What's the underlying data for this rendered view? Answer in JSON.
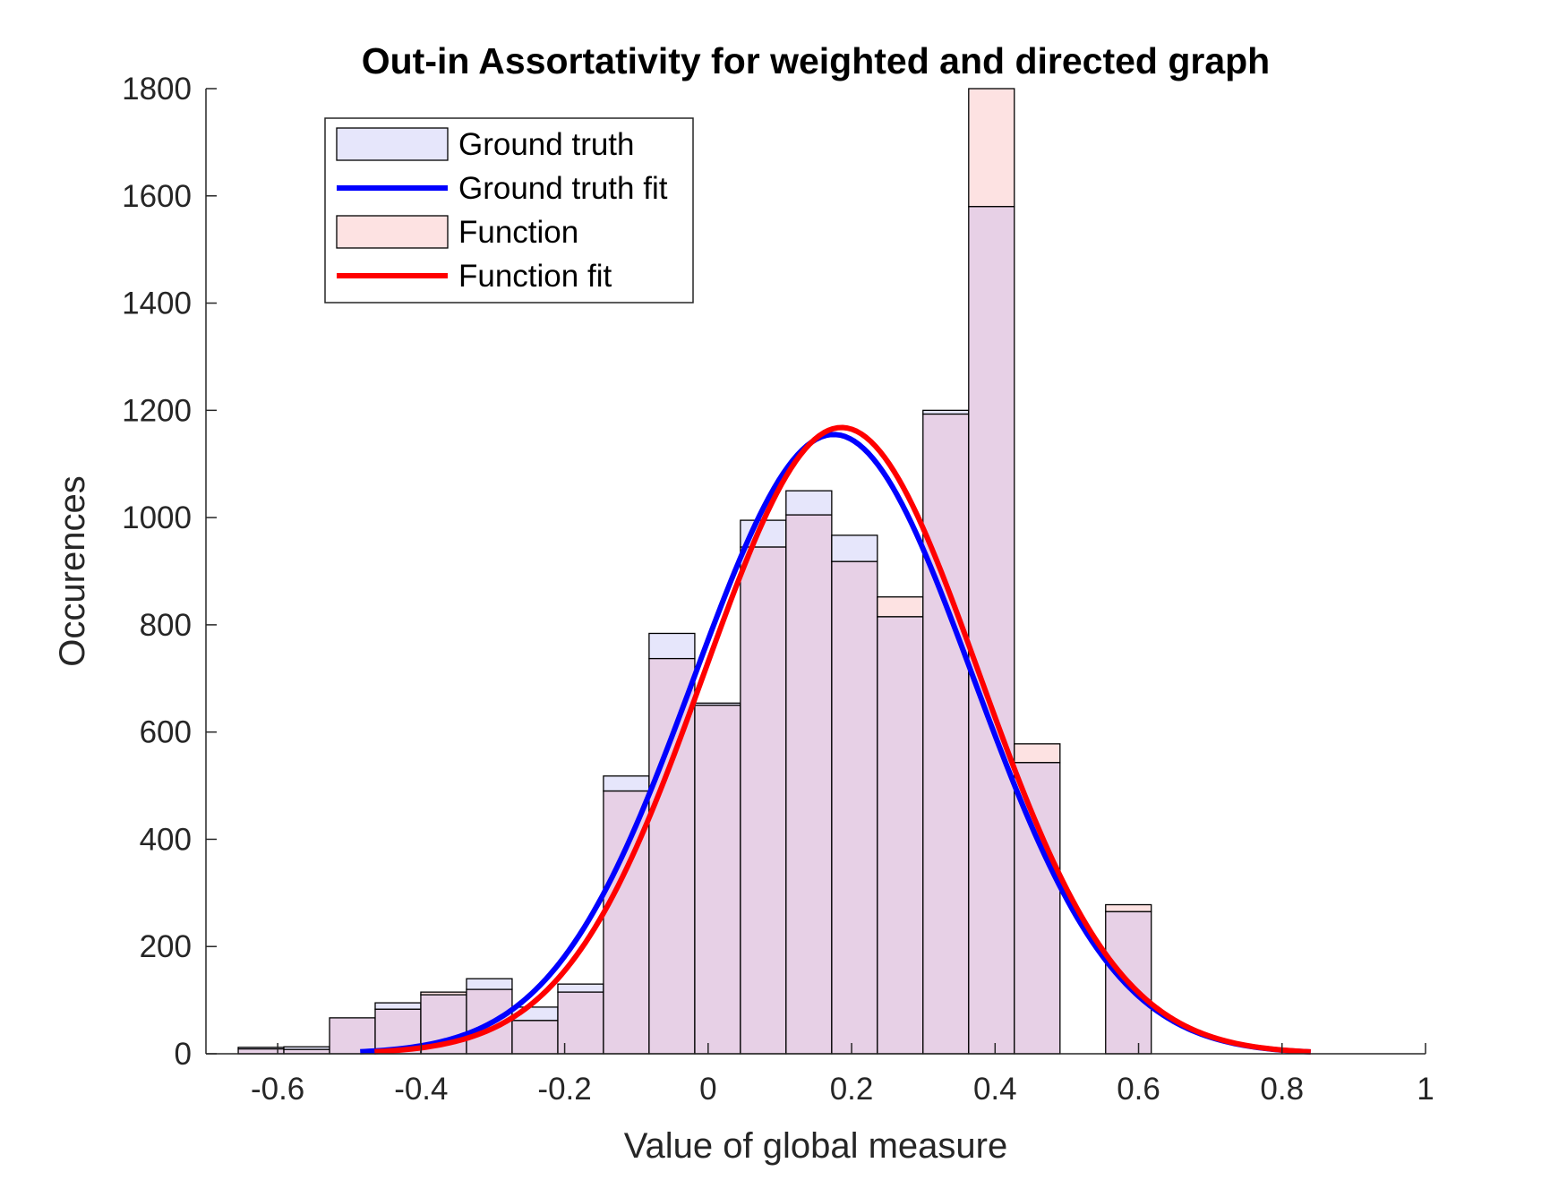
{
  "chart_data": {
    "type": "bar",
    "title": "Out-in Assortativity for weighted and directed graph",
    "xlabel": "Value of global measure",
    "ylabel": "Occurences",
    "xlim": [
      -0.7,
      1
    ],
    "ylim": [
      0,
      1800
    ],
    "xticks": [
      -0.6,
      -0.4,
      -0.2,
      0,
      0.2,
      0.4,
      0.6,
      0.8,
      1
    ],
    "xtick_labels": [
      "-0.6",
      "-0.4",
      "-0.2",
      "0",
      "0.2",
      "0.4",
      "0.6",
      "0.8",
      "1"
    ],
    "yticks": [
      0,
      200,
      400,
      600,
      800,
      1000,
      1200,
      1400,
      1600,
      1800
    ],
    "ytick_labels": [
      "0",
      "200",
      "400",
      "600",
      "800",
      "1000",
      "1200",
      "1400",
      "1600",
      "1800"
    ],
    "grid": false,
    "legend_position": "top-left",
    "bin_edges": [
      -0.655,
      -0.5914,
      -0.5277,
      -0.4641,
      -0.4005,
      -0.3368,
      -0.2732,
      -0.2095,
      -0.1459,
      -0.0823,
      -0.0186,
      0.045,
      0.1086,
      0.1723,
      0.2359,
      0.2995,
      0.3632,
      0.4268,
      0.4905,
      0.5541,
      0.6177
    ],
    "series": [
      {
        "name": "Ground truth",
        "kind": "histogram",
        "fill": "#e6e6fb",
        "values": [
          12,
          13,
          67,
          95,
          110,
          140,
          87,
          130,
          518,
          784,
          654,
          995,
          1050,
          967,
          815,
          1200,
          1580,
          543,
          0,
          265
        ]
      },
      {
        "name": "Function",
        "kind": "histogram",
        "fill": "#fde2e2",
        "values": [
          9,
          8,
          67,
          83,
          115,
          120,
          62,
          115,
          490,
          737,
          650,
          945,
          1005,
          918,
          852,
          1193,
          1800,
          578,
          0,
          278
        ]
      },
      {
        "name": "Ground truth fit",
        "kind": "gaussian_fit",
        "color": "#0000ff",
        "peak": 1155,
        "mean": 0.175,
        "sigma": 0.195,
        "x_range": [
          -0.485,
          0.84
        ]
      },
      {
        "name": "Function fit",
        "kind": "gaussian_fit",
        "color": "#ff0000",
        "peak": 1168,
        "mean": 0.186,
        "sigma": 0.192,
        "x_range": [
          -0.465,
          0.84
        ]
      }
    ],
    "overlap_fill": "#e7d0e6"
  }
}
